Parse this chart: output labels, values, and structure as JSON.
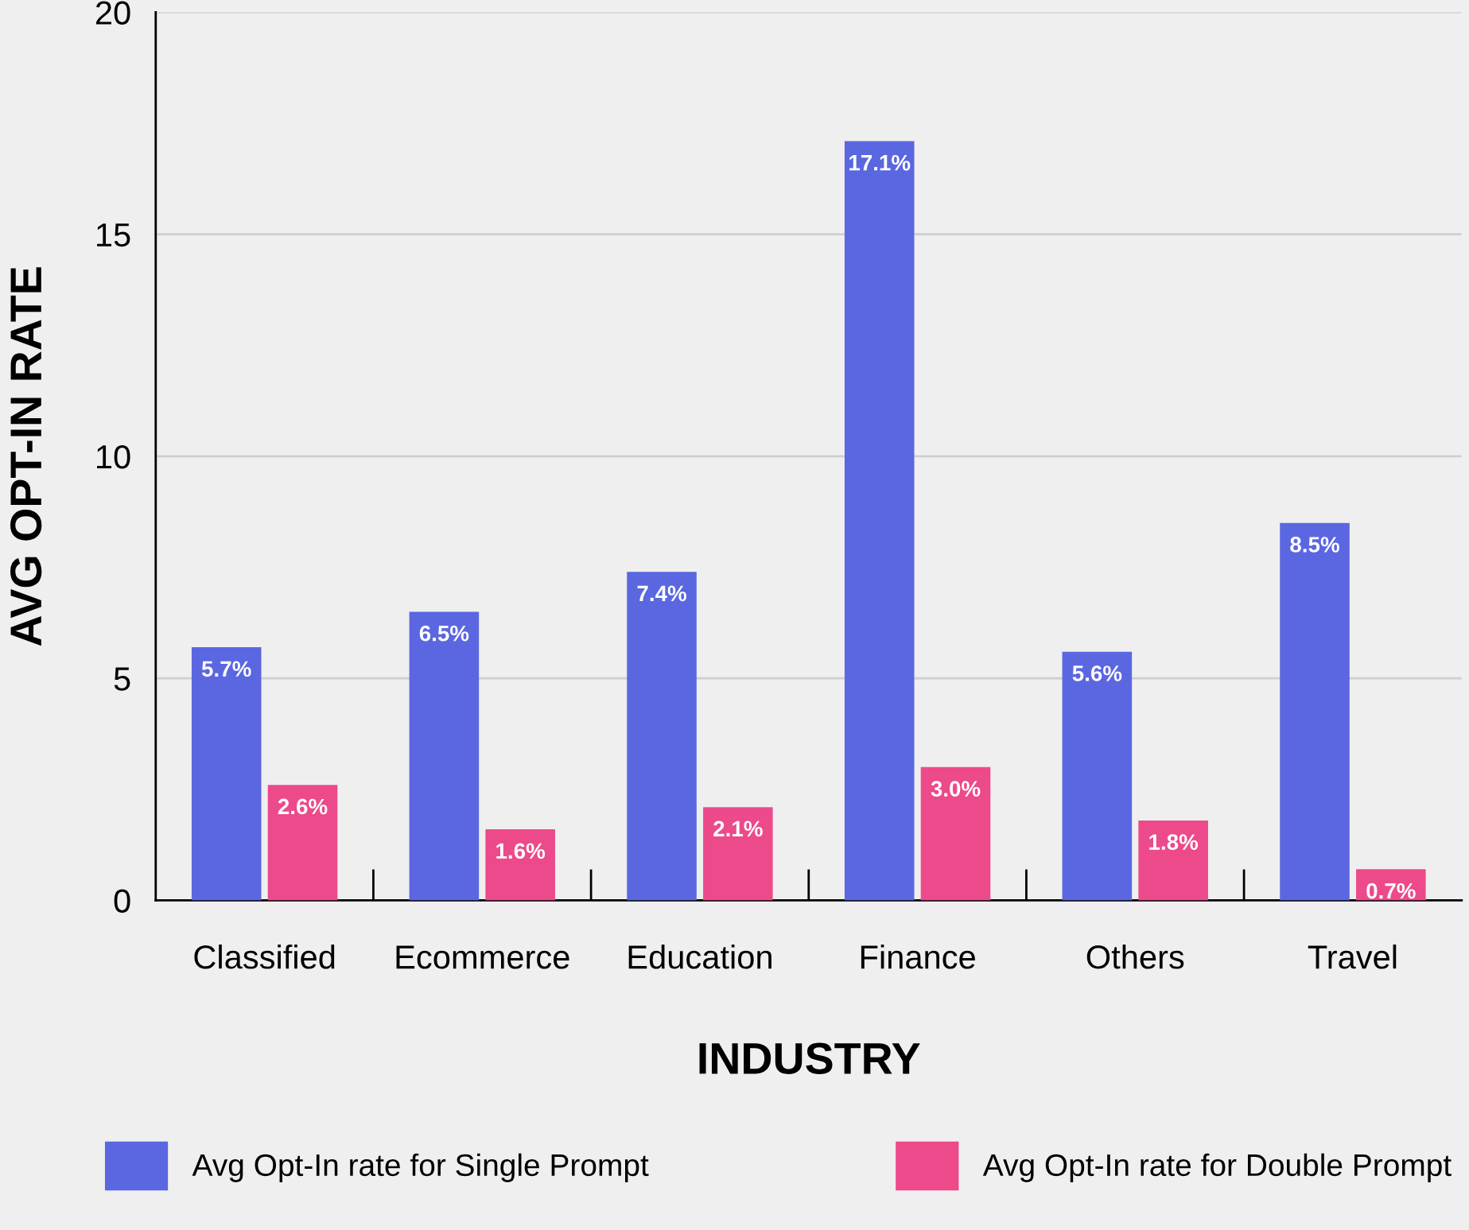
{
  "chart_data": {
    "type": "bar",
    "xlabel": "INDUSTRY",
    "ylabel": "AVG OPT-IN RATE",
    "categories": [
      "Classified",
      "Ecommerce",
      "Education",
      "Finance",
      "Others",
      "Travel"
    ],
    "series": [
      {
        "name": "Avg Opt-In rate for Single Prompt",
        "color": "#5b67e0",
        "values": [
          5.7,
          6.5,
          7.4,
          17.1,
          5.6,
          8.5
        ],
        "value_labels": [
          "5.7%",
          "6.5%",
          "7.4%",
          "17.1%",
          "5.6%",
          "8.5%"
        ]
      },
      {
        "name": "Avg Opt-In rate for Double Prompt",
        "color": "#ec4a8a",
        "values": [
          2.6,
          1.6,
          2.1,
          3.0,
          1.8,
          0.7
        ],
        "value_labels": [
          "2.6%",
          "1.6%",
          "2.1%",
          "3.0%",
          "1.8%",
          "0.7%"
        ]
      }
    ],
    "ylim": [
      0,
      20
    ],
    "yticks": [
      0,
      5,
      10,
      15,
      20
    ],
    "grid": "y",
    "legend": "bottom"
  }
}
